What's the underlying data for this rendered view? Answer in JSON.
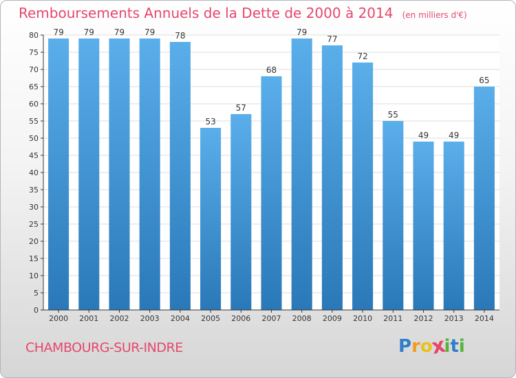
{
  "title": "Remboursements Annuels de la Dette de 2000 à 2014",
  "unit": "(en milliers d'€)",
  "commune": "CHAMBOURG-SUR-INDRE",
  "brand": {
    "letters": [
      "P",
      "r",
      "o",
      "x",
      "i",
      "t",
      "i"
    ],
    "colors": [
      "#2f7fc8",
      "#f39a1f",
      "#e8c21a",
      "#e5476b",
      "#58b33b",
      "#2f7fc8",
      "#58b33b"
    ]
  },
  "colors": {
    "bar_top": "#5aaeea",
    "bar_bottom": "#2a78b8",
    "title": "#e5476b",
    "grid": "#dddddd"
  },
  "chart_data": {
    "type": "bar",
    "categories": [
      "2000",
      "2001",
      "2002",
      "2003",
      "2004",
      "2005",
      "2006",
      "2007",
      "2008",
      "2009",
      "2010",
      "2011",
      "2012",
      "2013",
      "2014"
    ],
    "values": [
      79,
      79,
      79,
      79,
      78,
      53,
      57,
      68,
      79,
      77,
      72,
      55,
      49,
      49,
      65
    ],
    "ylim": [
      0,
      80
    ],
    "yticks": [
      0,
      5,
      10,
      15,
      20,
      25,
      30,
      35,
      40,
      45,
      50,
      55,
      60,
      65,
      70,
      75,
      80
    ],
    "grid": true,
    "data_labels": true
  }
}
